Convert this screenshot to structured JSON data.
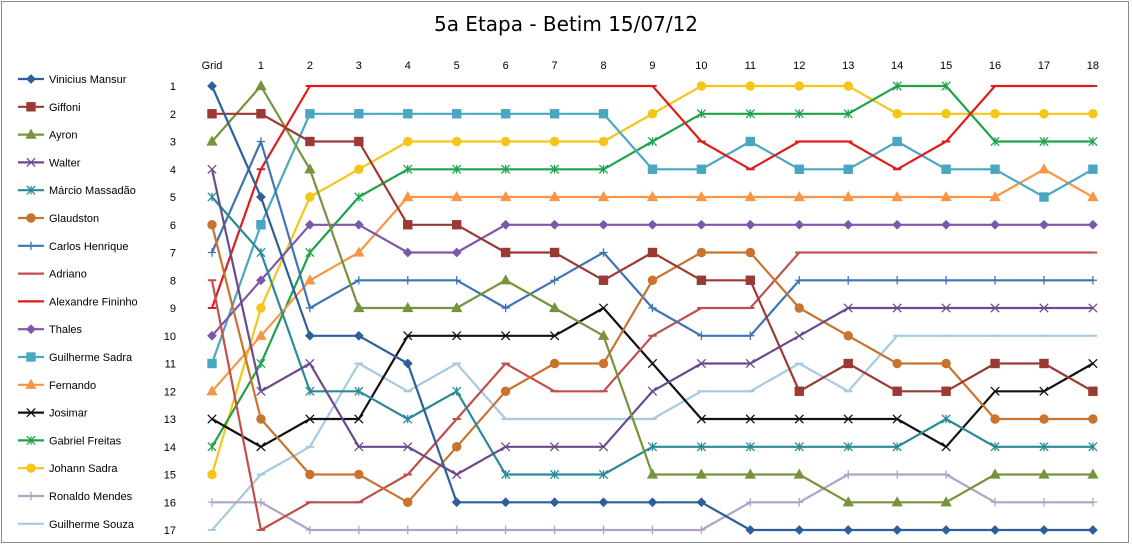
{
  "chart_data": {
    "type": "line",
    "title": "5a Etapa - Betim 15/07/12",
    "x": [
      "Grid",
      "1",
      "2",
      "3",
      "4",
      "5",
      "6",
      "7",
      "8",
      "9",
      "10",
      "11",
      "12",
      "13",
      "14",
      "15",
      "16",
      "17",
      "18"
    ],
    "y_ticks": [
      "1",
      "2",
      "3",
      "4",
      "5",
      "6",
      "7",
      "8",
      "9",
      "10",
      "11",
      "12",
      "13",
      "14",
      "15",
      "16",
      "17"
    ],
    "ylim": [
      1,
      17
    ],
    "y_inverted": true,
    "grid": false,
    "legend_position": "left",
    "series": [
      {
        "name": "Vinicius Mansur",
        "color": "#2f5f9a",
        "marker": "diamond",
        "values": [
          1,
          5,
          10,
          10,
          11,
          16,
          16,
          16,
          16,
          16,
          16,
          17,
          17,
          17,
          17,
          17,
          17,
          17,
          17
        ]
      },
      {
        "name": "Giffoni",
        "color": "#9b3a34",
        "marker": "square",
        "values": [
          2,
          2,
          3,
          3,
          6,
          6,
          7,
          7,
          8,
          7,
          8,
          8,
          12,
          11,
          12,
          12,
          11,
          11,
          12
        ]
      },
      {
        "name": "Ayron",
        "color": "#77933c",
        "marker": "triangle",
        "values": [
          3,
          1,
          4,
          9,
          9,
          9,
          8,
          9,
          10,
          15,
          15,
          15,
          15,
          16,
          16,
          16,
          15,
          15,
          15
        ]
      },
      {
        "name": "Walter",
        "color": "#6a4a8c",
        "marker": "x",
        "values": [
          4,
          12,
          11,
          14,
          14,
          15,
          14,
          14,
          14,
          12,
          11,
          11,
          10,
          9,
          9,
          9,
          9,
          9,
          9
        ]
      },
      {
        "name": "Márcio Massadão",
        "color": "#2a8a96",
        "marker": "asterisk",
        "values": [
          5,
          7,
          12,
          12,
          13,
          12,
          15,
          15,
          15,
          14,
          14,
          14,
          14,
          14,
          14,
          13,
          14,
          14,
          14
        ]
      },
      {
        "name": "Glaudston",
        "color": "#c8732e",
        "marker": "circle",
        "values": [
          6,
          13,
          15,
          15,
          16,
          14,
          12,
          11,
          11,
          8,
          7,
          7,
          9,
          10,
          11,
          11,
          13,
          13,
          13
        ]
      },
      {
        "name": "Carlos Henrique",
        "color": "#3d75b5",
        "marker": "plus",
        "values": [
          7,
          3,
          9,
          8,
          8,
          8,
          9,
          8,
          7,
          9,
          10,
          10,
          8,
          8,
          8,
          8,
          8,
          8,
          8
        ]
      },
      {
        "name": "Adriano",
        "color": "#c0504d",
        "marker": "dash",
        "values": [
          8,
          17,
          16,
          16,
          15,
          13,
          11,
          12,
          12,
          10,
          9,
          9,
          7,
          7,
          7,
          7,
          7,
          7,
          7
        ]
      },
      {
        "name": "Alexandre Fininho",
        "color": "#e01c1c",
        "marker": "dash",
        "values": [
          9,
          4,
          1,
          1,
          1,
          1,
          1,
          1,
          1,
          1,
          3,
          4,
          3,
          3,
          4,
          3,
          1,
          1,
          1
        ]
      },
      {
        "name": "Thales",
        "color": "#7e57a8",
        "marker": "diamond",
        "values": [
          10,
          8,
          6,
          6,
          7,
          7,
          6,
          6,
          6,
          6,
          6,
          6,
          6,
          6,
          6,
          6,
          6,
          6,
          6
        ]
      },
      {
        "name": "Guilherme Sadra",
        "color": "#4aa7c0",
        "marker": "square",
        "values": [
          11,
          6,
          2,
          2,
          2,
          2,
          2,
          2,
          2,
          4,
          4,
          3,
          4,
          4,
          3,
          4,
          4,
          5,
          4
        ]
      },
      {
        "name": "Fernando",
        "color": "#f79646",
        "marker": "triangle",
        "values": [
          12,
          10,
          8,
          7,
          5,
          5,
          5,
          5,
          5,
          5,
          5,
          5,
          5,
          5,
          5,
          5,
          5,
          4,
          5
        ]
      },
      {
        "name": "Josimar",
        "color": "#111111",
        "marker": "x",
        "values": [
          13,
          14,
          13,
          13,
          10,
          10,
          10,
          10,
          9,
          11,
          13,
          13,
          13,
          13,
          13,
          14,
          12,
          12,
          11
        ]
      },
      {
        "name": "Gabriel Freitas",
        "color": "#1fa34a",
        "marker": "asterisk",
        "values": [
          14,
          11,
          7,
          5,
          4,
          4,
          4,
          4,
          4,
          3,
          2,
          2,
          2,
          2,
          1,
          1,
          3,
          3,
          3
        ]
      },
      {
        "name": "Johann Sadra",
        "color": "#f5c518",
        "marker": "circle",
        "values": [
          15,
          9,
          5,
          4,
          3,
          3,
          3,
          3,
          3,
          2,
          1,
          1,
          1,
          1,
          2,
          2,
          2,
          2,
          2
        ]
      },
      {
        "name": "Ronaldo Mendes",
        "color": "#b3a2c7",
        "marker": "plus",
        "values": [
          16,
          16,
          17,
          17,
          17,
          17,
          17,
          17,
          17,
          17,
          17,
          16,
          16,
          15,
          15,
          15,
          16,
          16,
          16
        ]
      },
      {
        "name": "Guilherme Souza",
        "color": "#a6cbe0",
        "marker": "dash",
        "values": [
          17,
          15,
          14,
          11,
          12,
          11,
          13,
          13,
          13,
          13,
          12,
          12,
          11,
          12,
          10,
          10,
          10,
          10,
          10
        ]
      }
    ]
  }
}
